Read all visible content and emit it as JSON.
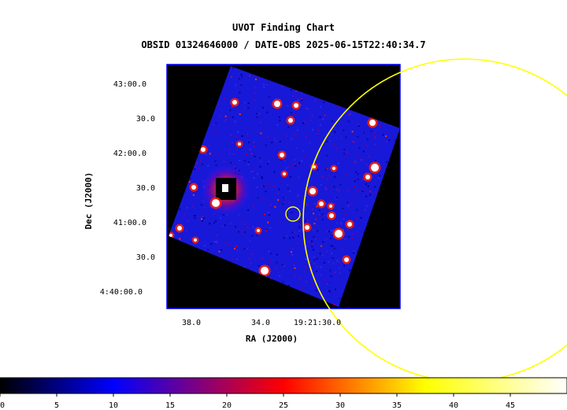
{
  "chart_data": {
    "type": "heatmap",
    "title": "UVOT Finding Chart",
    "subtitle": "OBSID 01324646000 / DATE-OBS 2025-06-15T22:40:34.7",
    "xlabel": "RA (J2000)",
    "ylabel": "Dec (J2000)",
    "x_ticks": [
      "38.0",
      "34.0",
      "19:21:30.0"
    ],
    "y_ticks": [
      "43:00.0",
      "30.0",
      "42:00.0",
      "30.0",
      "41:00.0",
      "30.0",
      "4:40:00.0"
    ],
    "colorbar": {
      "min": 0,
      "max": 50,
      "tick_values": [
        0,
        5,
        10,
        15,
        20,
        25,
        30,
        35,
        40,
        45
      ],
      "tick_labels": [
        "0",
        "5",
        "10",
        "15",
        "20",
        "25",
        "30",
        "35",
        "40",
        "45"
      ],
      "colormap": [
        "#000000",
        "#0000ff",
        "#ff0000",
        "#ffff00",
        "#ffffff"
      ]
    },
    "overlays": [
      {
        "shape": "circle",
        "size": "large",
        "color": "#ffff00"
      },
      {
        "shape": "circle",
        "size": "small",
        "color": "#ffff00"
      }
    ],
    "colors": {
      "frame": "#0000ff",
      "background": "#000000",
      "field": "#1a1ae0",
      "overlay": "#ffff00"
    }
  }
}
